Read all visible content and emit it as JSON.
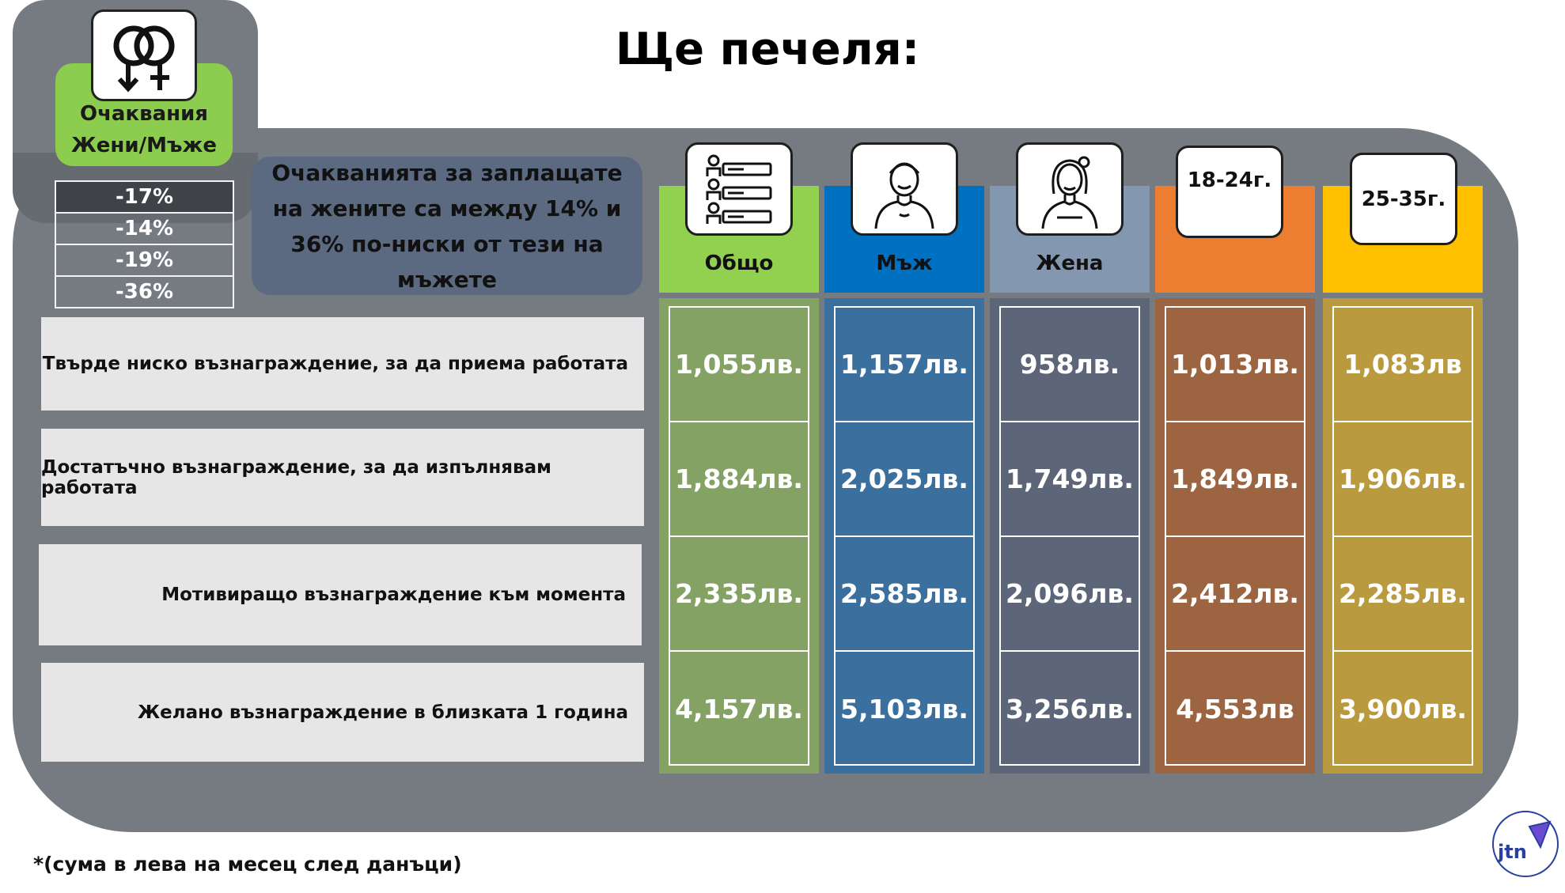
{
  "title": "Ще печеля:",
  "gender_card": {
    "label_line1": "Очаквания",
    "label_line2": "Жени/Мъже",
    "icon": "gender-symbols-icon"
  },
  "percent_differences": [
    "-17%",
    "-14%",
    "-19%",
    "-36%"
  ],
  "note": {
    "line1": "Очакванията за заплащате",
    "line2": "на жените са между 14% и",
    "line3": "36% по-ниски от тези на",
    "line4": "мъжете"
  },
  "row_labels": [
    "Твърде ниско възнаграждение, за да приема работата",
    "Достатъчно възнаграждение, за да изпълнявам работата",
    "Мотивиращо възнаграждение към момента",
    "Желано възнаграждение в близката 1 година"
  ],
  "columns": [
    {
      "label": "Общо",
      "icon": "people-list-icon",
      "header_color": "#92d050",
      "body_color": "#84a264",
      "values": [
        "1,055лв.",
        "1,884лв.",
        "2,335лв.",
        "4,157лв."
      ]
    },
    {
      "label": "Мъж",
      "icon": "man-avatar-icon",
      "header_color": "#0070c0",
      "body_color": "#3b709e",
      "values": [
        "1,157лв.",
        "2,025лв.",
        "2,585лв.",
        "5,103лв."
      ]
    },
    {
      "label": "Жена",
      "icon": "woman-avatar-icon",
      "header_color": "#8497b0",
      "body_color": "#5d6678",
      "values": [
        "958лв.",
        "1,749лв.",
        "2,096лв.",
        "3,256лв."
      ]
    },
    {
      "label": "18-24г.",
      "icon": "",
      "header_color": "#ed7d31",
      "body_color": "#9c6441",
      "values": [
        "1,013лв.",
        "1,849лв.",
        "2,412лв.",
        "4,553лв"
      ]
    },
    {
      "label": "25-35г.",
      "icon": "",
      "header_color": "#ffc000",
      "body_color": "#b99a3f",
      "values": [
        "1,083лв",
        "1,906лв.",
        "2,285лв.",
        "3,900лв."
      ]
    }
  ],
  "footnote": "*(сума в лева на месец след данъци)",
  "logo_text": "jtn"
}
